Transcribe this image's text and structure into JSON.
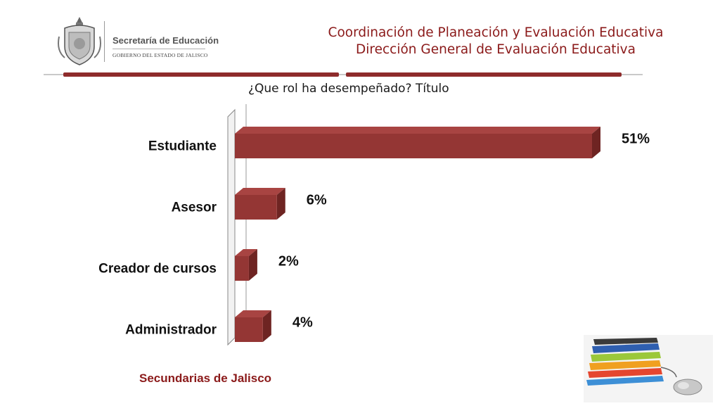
{
  "header": {
    "title_line1": "Coordinación de Planeación y Evaluación Educativa",
    "title_line2": "Dirección General de Evaluación Educativa"
  },
  "org": {
    "name": "Secretaría de Educación",
    "subtitle": "GOBIERNO DEL ESTADO DE JALISCO"
  },
  "chart_data": {
    "type": "bar",
    "orientation": "horizontal",
    "title": "¿Que rol ha desempeñado? Título",
    "categories": [
      "Estudiante",
      "Asesor",
      "Creador de cursos",
      "Administrador"
    ],
    "values": [
      51,
      6,
      2,
      4
    ],
    "value_labels": [
      "51%",
      "6%",
      "2%",
      "4%"
    ],
    "unit": "%",
    "bar_color": "#943634",
    "bar_side_color": "#6e2422",
    "bar_top_color": "#a84442",
    "grid": false,
    "legend": "none"
  },
  "footer": {
    "label": "Secundarias de Jalisco"
  },
  "colors": {
    "accent": "#8b1a1a",
    "rule": "#8e2b2b"
  },
  "images": {
    "logo": "jalisco-coat-of-arms",
    "decoration": "books-and-mouse"
  }
}
